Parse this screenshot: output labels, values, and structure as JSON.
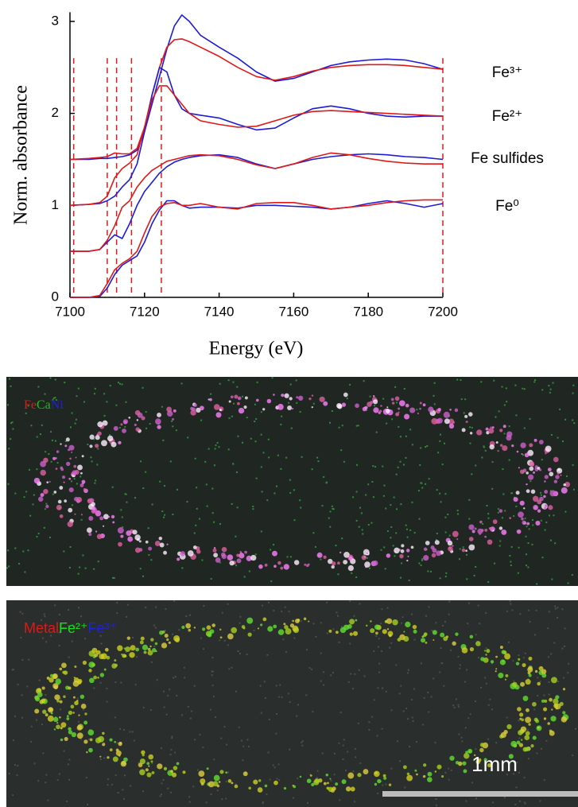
{
  "chart_data": {
    "type": "line",
    "xlabel": "Energy (eV)",
    "ylabel": "Norm. absorbance",
    "x": [
      7100,
      7105,
      7108,
      7110,
      7112,
      7114,
      7116,
      7118,
      7120,
      7122,
      7124,
      7126,
      7128,
      7130,
      7132,
      7135,
      7140,
      7145,
      7150,
      7155,
      7160,
      7165,
      7170,
      7175,
      7180,
      7185,
      7190,
      7195,
      7200
    ],
    "series": [
      {
        "name": "Fe³⁺",
        "lines": [
          {
            "color": "#1c1cd8",
            "values": [
              1.5,
              1.5,
              1.51,
              1.51,
              1.52,
              1.53,
              1.55,
              1.6,
              1.8,
              2.1,
              2.4,
              2.7,
              2.95,
              3.07,
              3.0,
              2.85,
              2.72,
              2.6,
              2.45,
              2.35,
              2.38,
              2.45,
              2.52,
              2.56,
              2.58,
              2.59,
              2.58,
              2.54,
              2.48
            ]
          },
          {
            "color": "#e01818",
            "values": [
              1.5,
              1.51,
              1.52,
              1.53,
              1.57,
              1.56,
              1.56,
              1.62,
              1.85,
              2.2,
              2.5,
              2.72,
              2.8,
              2.81,
              2.78,
              2.72,
              2.62,
              2.5,
              2.4,
              2.36,
              2.4,
              2.46,
              2.5,
              2.52,
              2.53,
              2.53,
              2.52,
              2.5,
              2.48
            ]
          }
        ]
      },
      {
        "name": "Fe²⁺",
        "lines": [
          {
            "color": "#1c1cd8",
            "values": [
              1.0,
              1.01,
              1.02,
              1.05,
              1.1,
              1.2,
              1.28,
              1.45,
              1.8,
              2.2,
              2.5,
              2.45,
              2.2,
              2.05,
              2.0,
              1.98,
              1.95,
              1.88,
              1.82,
              1.84,
              1.95,
              2.05,
              2.08,
              2.05,
              2.0,
              1.97,
              1.96,
              1.97,
              1.97
            ]
          },
          {
            "color": "#e01818",
            "values": [
              1.0,
              1.01,
              1.03,
              1.1,
              1.3,
              1.4,
              1.46,
              1.55,
              1.85,
              2.15,
              2.3,
              2.3,
              2.2,
              2.1,
              2.0,
              1.92,
              1.88,
              1.85,
              1.86,
              1.92,
              1.98,
              2.02,
              2.03,
              2.02,
              2.01,
              2.0,
              1.99,
              1.98,
              1.97
            ]
          }
        ]
      },
      {
        "name": "Fe sulfides",
        "lines": [
          {
            "color": "#1c1cd8",
            "values": [
              0.5,
              0.5,
              0.52,
              0.6,
              0.68,
              0.64,
              0.8,
              1.0,
              1.15,
              1.25,
              1.35,
              1.42,
              1.47,
              1.5,
              1.52,
              1.54,
              1.55,
              1.52,
              1.45,
              1.4,
              1.45,
              1.5,
              1.53,
              1.55,
              1.56,
              1.55,
              1.53,
              1.52,
              1.5
            ]
          },
          {
            "color": "#e01818",
            "values": [
              0.5,
              0.5,
              0.52,
              0.62,
              0.78,
              0.98,
              1.05,
              1.2,
              1.3,
              1.38,
              1.43,
              1.48,
              1.5,
              1.52,
              1.54,
              1.55,
              1.54,
              1.5,
              1.44,
              1.4,
              1.45,
              1.52,
              1.57,
              1.55,
              1.51,
              1.48,
              1.46,
              1.45,
              1.45
            ]
          }
        ]
      },
      {
        "name": "Fe⁰",
        "lines": [
          {
            "color": "#1c1cd8",
            "values": [
              0,
              0,
              0.01,
              0.1,
              0.25,
              0.35,
              0.4,
              0.45,
              0.6,
              0.8,
              0.95,
              1.05,
              1.05,
              1.0,
              0.97,
              0.98,
              0.98,
              0.97,
              1.0,
              1.0,
              0.99,
              0.98,
              0.96,
              0.98,
              1.02,
              1.05,
              1.02,
              0.98,
              1.02
            ]
          },
          {
            "color": "#e01818",
            "values": [
              0,
              0,
              0.02,
              0.15,
              0.3,
              0.37,
              0.42,
              0.5,
              0.7,
              0.88,
              0.98,
              1.02,
              1.03,
              1.0,
              1.0,
              1.02,
              0.98,
              0.96,
              1.02,
              1.03,
              1.03,
              1.0,
              0.96,
              0.98,
              1.0,
              1.03,
              1.05,
              1.06,
              1.06
            ]
          }
        ]
      }
    ],
    "reference_lines": {
      "color": "#e01818",
      "x": [
        7101,
        7110,
        7112.5,
        7116.5,
        7124.5,
        7200
      ]
    },
    "xlim": [
      7100,
      7200
    ],
    "ylim": [
      0,
      3.1
    ],
    "xticks": [
      7100,
      7120,
      7140,
      7160,
      7180,
      7200
    ],
    "yticks": [
      0,
      1,
      2,
      3
    ]
  },
  "images": [
    {
      "legend": [
        {
          "text": "Fe",
          "color": "#e01818"
        },
        {
          "text": "Ca",
          "color": "#18c018"
        },
        {
          "text": "Ni",
          "color": "#2020e0"
        }
      ]
    },
    {
      "legend": [
        {
          "text": "Metal",
          "color": "#e01818"
        },
        {
          "text": "Fe²⁺",
          "color": "#18e018"
        },
        {
          "text": "Fe³⁺",
          "color": "#2020e0"
        }
      ],
      "scale_bar": "1mm"
    }
  ]
}
